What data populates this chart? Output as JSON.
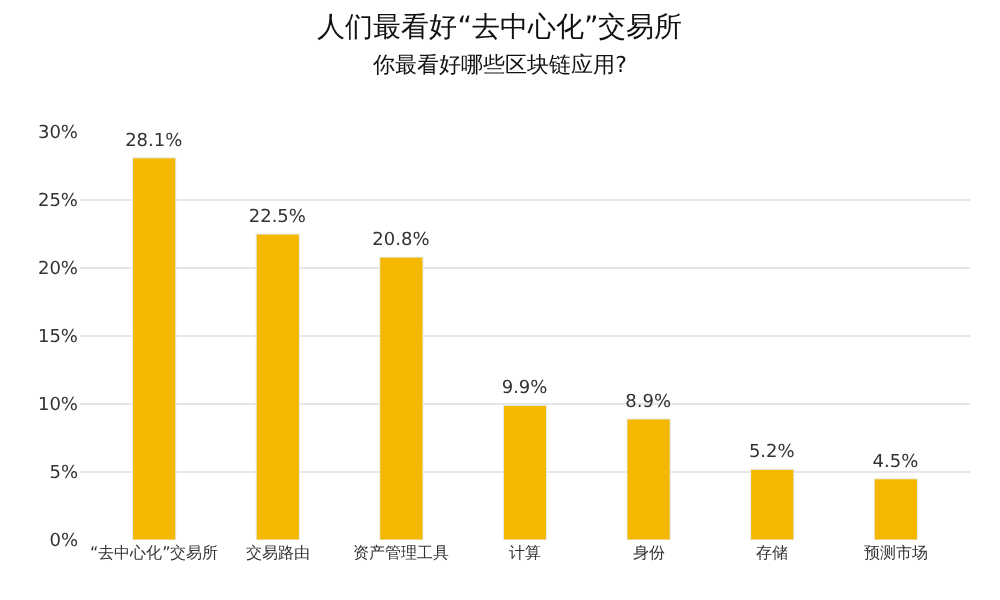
{
  "chart_data": {
    "type": "bar",
    "title": "人们最看好“去中心化”交易所",
    "subtitle": "你最看好哪些区块链应用?",
    "categories": [
      "“去中心化”交易所",
      "交易路由",
      "资产管理工具",
      "计算",
      "身份",
      "存储",
      "预测市场"
    ],
    "values": [
      28.1,
      22.5,
      20.8,
      9.9,
      8.9,
      5.2,
      4.5
    ],
    "color": "#f5b800",
    "value_labels": [
      "28.1%",
      "22.5%",
      "20.8%",
      "9.9%",
      "8.9%",
      "5.2%",
      "4.5%"
    ],
    "ylim": [
      0,
      30
    ],
    "yticks": [
      {
        "value": 0,
        "label": "0%"
      },
      {
        "value": 5,
        "label": "5%"
      },
      {
        "value": 10,
        "label": "10%"
      },
      {
        "value": 15,
        "label": "15%"
      },
      {
        "value": 20,
        "label": "20%"
      },
      {
        "value": 25,
        "label": "25%"
      },
      {
        "value": 30,
        "label": "30%"
      }
    ],
    "grid": "y"
  }
}
